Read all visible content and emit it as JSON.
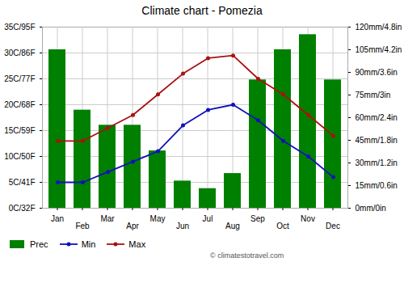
{
  "chart_data": {
    "type": "bar",
    "title": "Climate chart - Pomezia",
    "categories": [
      "Jan",
      "Feb",
      "Mar",
      "Apr",
      "May",
      "Jun",
      "Jul",
      "Aug",
      "Sep",
      "Oct",
      "Nov",
      "Dec"
    ],
    "series": [
      {
        "name": "Prec",
        "type": "bar",
        "axis": "y2",
        "color": "#008000",
        "values": [
          105,
          65,
          55,
          55,
          38,
          18,
          13,
          23,
          85,
          105,
          115,
          85
        ]
      },
      {
        "name": "Min",
        "type": "line",
        "marker": "circle",
        "color": "#1111BB",
        "values": [
          5,
          5,
          7,
          9,
          11,
          16,
          19,
          20,
          17,
          13,
          10,
          6
        ]
      },
      {
        "name": "Max",
        "type": "line",
        "marker": "circle",
        "color": "#AA1111",
        "values": [
          13,
          13,
          15.5,
          18,
          22,
          26,
          29,
          29.5,
          25,
          22,
          18,
          14
        ]
      }
    ],
    "ylim": [
      0,
      35
    ],
    "yticks": [
      {
        "value": 0,
        "label": "0C/32F"
      },
      {
        "value": 5,
        "label": "5C/41F"
      },
      {
        "value": 10,
        "label": "10C/50F"
      },
      {
        "value": 15,
        "label": "15C/59F"
      },
      {
        "value": 20,
        "label": "20C/68F"
      },
      {
        "value": 25,
        "label": "25C/77F"
      },
      {
        "value": 30,
        "label": "30C/86F"
      },
      {
        "value": 35,
        "label": "35C/95F"
      }
    ],
    "y2lim": [
      0,
      120
    ],
    "y2ticks": [
      {
        "value": 0,
        "label": "0mm/0in"
      },
      {
        "value": 15,
        "label": "15mm/0.6in"
      },
      {
        "value": 30,
        "label": "30mm/1.2in"
      },
      {
        "value": 45,
        "label": "45mm/1.8in"
      },
      {
        "value": 60,
        "label": "60mm/2.4in"
      },
      {
        "value": 75,
        "label": "75mm/3in"
      },
      {
        "value": 90,
        "label": "90mm/3.6in"
      },
      {
        "value": 105,
        "label": "105mm/4.2in"
      },
      {
        "value": 120,
        "label": "120mm/4.8in"
      }
    ],
    "grid": true,
    "legend": "lower left",
    "annotations": [
      "© climatestotravel.com"
    ]
  }
}
